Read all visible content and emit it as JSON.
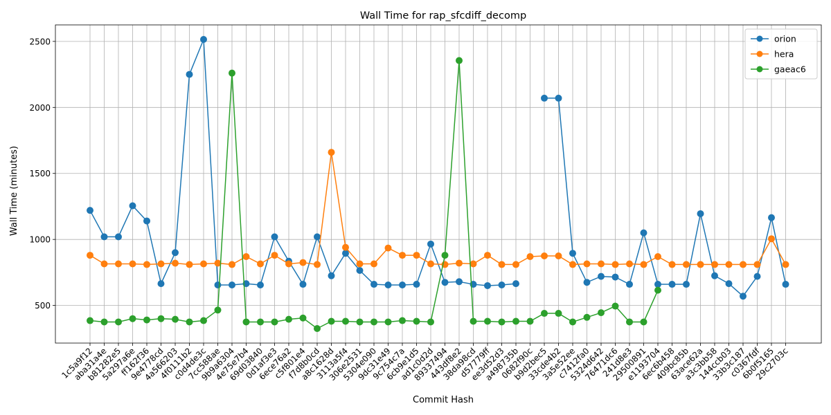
{
  "chart_data": {
    "type": "line",
    "title": "Wall Time for rap_sfcdiff_decomp",
    "xlabel": "Commit Hash",
    "ylabel": "Wall Time (minutes)",
    "ylim": [
      215,
      2625
    ],
    "yticks": [
      500,
      1000,
      1500,
      2000,
      2500
    ],
    "grid": true,
    "legend_position": "top-right",
    "categories": [
      "1c5a9f12",
      "aba31a4e",
      "b81282e5",
      "5a297a6e",
      "ff162f36",
      "9e4778cd",
      "4a566203",
      "4f0111b2",
      "c0d4de3c",
      "7cc588ae",
      "9b9a6304",
      "4e75e7b4",
      "69d03840",
      "0d1af3e3",
      "6ece76a2",
      "c5f801e4",
      "f7d8b0cd",
      "a8c1628d",
      "3113a5f4",
      "306e2531",
      "5304e090",
      "9dc31e49",
      "9c754c7a",
      "6cb9e1d5",
      "ad1c0d2d",
      "89337494",
      "443df8e2",
      "38da98cd",
      "d57779ff",
      "ee3d52d3",
      "a498735b",
      "0682f90c",
      "b9d2bec5",
      "33cde4b2",
      "3a5e52ee",
      "c7412fa0",
      "5324d642",
      "76471dc6",
      "241d8e3",
      "29500891",
      "e1193704",
      "6ec6b458",
      "409bc85b",
      "63ace62a",
      "a3c3bb58",
      "144ccb03",
      "33b3c187",
      "c0367fdf",
      "6b0f5165",
      "29c2703c"
    ],
    "series": [
      {
        "name": "orion",
        "color": "#1f77b4",
        "values": [
          1220,
          1020,
          1020,
          1255,
          1140,
          665,
          900,
          2250,
          2515,
          655,
          655,
          665,
          655,
          1020,
          835,
          660,
          1020,
          725,
          895,
          765,
          660,
          655,
          655,
          660,
          965,
          675,
          680,
          660,
          650,
          655,
          665,
          null,
          2070,
          2070,
          895,
          675,
          720,
          715,
          660,
          1050,
          660,
          660,
          660,
          1195,
          725,
          665,
          570,
          720,
          1165,
          660
        ]
      },
      {
        "name": "hera",
        "color": "#ff7f0e",
        "values": [
          880,
          815,
          815,
          815,
          810,
          815,
          820,
          810,
          815,
          820,
          810,
          870,
          815,
          880,
          815,
          825,
          810,
          1660,
          940,
          815,
          815,
          935,
          880,
          880,
          815,
          810,
          820,
          815,
          880,
          810,
          810,
          870,
          875,
          875,
          810,
          815,
          815,
          810,
          815,
          810,
          870,
          810,
          810,
          810,
          810,
          810,
          810,
          810,
          1005,
          810
        ]
      },
      {
        "name": "gaeac6",
        "color": "#2ca02c",
        "values": [
          385,
          375,
          375,
          400,
          390,
          400,
          395,
          375,
          385,
          465,
          2260,
          375,
          375,
          375,
          395,
          405,
          325,
          380,
          380,
          375,
          375,
          375,
          385,
          380,
          375,
          880,
          2355,
          380,
          380,
          375,
          380,
          380,
          440,
          440,
          375,
          410,
          445,
          495,
          375,
          375,
          615,
          null,
          null,
          null,
          null,
          null,
          null,
          null,
          null,
          null
        ]
      }
    ]
  }
}
